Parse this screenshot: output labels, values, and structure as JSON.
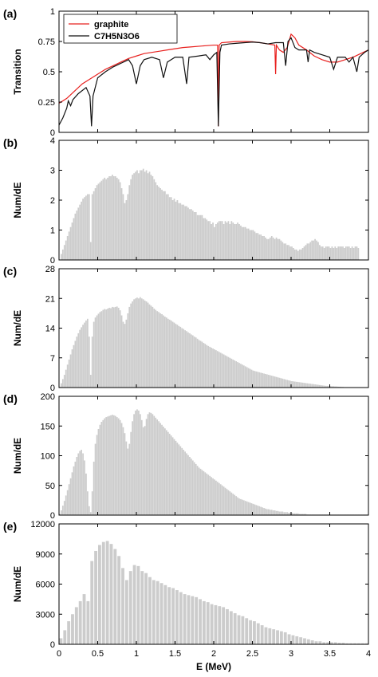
{
  "chart_data": [
    {
      "panel": "(a)",
      "type": "line",
      "ylabel": "Transition",
      "xlim": [
        0,
        4
      ],
      "ylim": [
        0,
        1
      ],
      "yticks": [
        "0",
        "0.25",
        "0.5",
        "0.75",
        "1"
      ],
      "legend_position": "top-left",
      "series": [
        {
          "name": "graphite",
          "color": "#e8201e",
          "points": [
            [
              0,
              0.24
            ],
            [
              0.1,
              0.28
            ],
            [
              0.2,
              0.34
            ],
            [
              0.3,
              0.4
            ],
            [
              0.4,
              0.44
            ],
            [
              0.5,
              0.48
            ],
            [
              0.6,
              0.52
            ],
            [
              0.7,
              0.55
            ],
            [
              0.8,
              0.58
            ],
            [
              0.9,
              0.61
            ],
            [
              1.0,
              0.63
            ],
            [
              1.1,
              0.65
            ],
            [
              1.2,
              0.66
            ],
            [
              1.3,
              0.67
            ],
            [
              1.4,
              0.68
            ],
            [
              1.5,
              0.69
            ],
            [
              1.6,
              0.7
            ],
            [
              1.7,
              0.705
            ],
            [
              1.8,
              0.71
            ],
            [
              1.9,
              0.715
            ],
            [
              2.0,
              0.72
            ],
            [
              2.05,
              0.72
            ],
            [
              2.06,
              0.05
            ],
            [
              2.07,
              0.72
            ],
            [
              2.1,
              0.74
            ],
            [
              2.2,
              0.745
            ],
            [
              2.3,
              0.75
            ],
            [
              2.4,
              0.75
            ],
            [
              2.5,
              0.748
            ],
            [
              2.6,
              0.74
            ],
            [
              2.7,
              0.73
            ],
            [
              2.79,
              0.72
            ],
            [
              2.8,
              0.48
            ],
            [
              2.81,
              0.72
            ],
            [
              2.85,
              0.68
            ],
            [
              2.9,
              0.66
            ],
            [
              2.95,
              0.7
            ],
            [
              3.0,
              0.81
            ],
            [
              3.05,
              0.78
            ],
            [
              3.1,
              0.72
            ],
            [
              3.2,
              0.68
            ],
            [
              3.3,
              0.63
            ],
            [
              3.4,
              0.6
            ],
            [
              3.5,
              0.58
            ],
            [
              3.6,
              0.58
            ],
            [
              3.7,
              0.6
            ],
            [
              3.8,
              0.62
            ],
            [
              3.9,
              0.65
            ],
            [
              4.0,
              0.68
            ]
          ]
        },
        {
          "name": "C7H5N3O6",
          "color": "#111111",
          "points": [
            [
              0,
              0.06
            ],
            [
              0.05,
              0.12
            ],
            [
              0.1,
              0.2
            ],
            [
              0.12,
              0.26
            ],
            [
              0.15,
              0.22
            ],
            [
              0.18,
              0.27
            ],
            [
              0.25,
              0.32
            ],
            [
              0.35,
              0.37
            ],
            [
              0.4,
              0.3
            ],
            [
              0.42,
              0.05
            ],
            [
              0.44,
              0.3
            ],
            [
              0.5,
              0.45
            ],
            [
              0.6,
              0.5
            ],
            [
              0.7,
              0.54
            ],
            [
              0.8,
              0.57
            ],
            [
              0.9,
              0.6
            ],
            [
              0.95,
              0.55
            ],
            [
              1.0,
              0.4
            ],
            [
              1.05,
              0.55
            ],
            [
              1.1,
              0.6
            ],
            [
              1.2,
              0.62
            ],
            [
              1.3,
              0.6
            ],
            [
              1.35,
              0.45
            ],
            [
              1.4,
              0.58
            ],
            [
              1.5,
              0.62
            ],
            [
              1.6,
              0.62
            ],
            [
              1.65,
              0.4
            ],
            [
              1.68,
              0.62
            ],
            [
              1.8,
              0.63
            ],
            [
              1.9,
              0.64
            ],
            [
              1.95,
              0.6
            ],
            [
              2.0,
              0.64
            ],
            [
              2.04,
              0.66
            ],
            [
              2.06,
              0.05
            ],
            [
              2.08,
              0.66
            ],
            [
              2.1,
              0.72
            ],
            [
              2.2,
              0.73
            ],
            [
              2.3,
              0.735
            ],
            [
              2.4,
              0.74
            ],
            [
              2.5,
              0.745
            ],
            [
              2.6,
              0.74
            ],
            [
              2.7,
              0.73
            ],
            [
              2.8,
              0.74
            ],
            [
              2.9,
              0.74
            ],
            [
              2.93,
              0.55
            ],
            [
              2.96,
              0.75
            ],
            [
              3.0,
              0.78
            ],
            [
              3.05,
              0.7
            ],
            [
              3.1,
              0.68
            ],
            [
              3.2,
              0.68
            ],
            [
              3.22,
              0.58
            ],
            [
              3.24,
              0.68
            ],
            [
              3.3,
              0.66
            ],
            [
              3.4,
              0.64
            ],
            [
              3.5,
              0.62
            ],
            [
              3.55,
              0.52
            ],
            [
              3.6,
              0.62
            ],
            [
              3.7,
              0.62
            ],
            [
              3.75,
              0.58
            ],
            [
              3.8,
              0.62
            ],
            [
              3.85,
              0.5
            ],
            [
              3.88,
              0.62
            ],
            [
              3.95,
              0.66
            ],
            [
              4.0,
              0.68
            ]
          ]
        }
      ]
    },
    {
      "panel": "(b)",
      "type": "bar",
      "ylabel": "Num/dE",
      "xlim": [
        0,
        4
      ],
      "ylim": [
        0,
        4
      ],
      "yticks": [
        "0",
        "1",
        "2",
        "3",
        "4"
      ],
      "bar_color": "#cccccc",
      "binwidth": 0.02,
      "values": [
        0.0,
        0.2,
        0.35,
        0.5,
        0.65,
        0.8,
        0.95,
        1.1,
        1.25,
        1.4,
        1.55,
        1.65,
        1.75,
        1.85,
        1.95,
        2.05,
        2.1,
        2.15,
        2.2,
        2.2,
        0.6,
        2.2,
        2.3,
        2.4,
        2.5,
        2.55,
        2.6,
        2.65,
        2.7,
        2.75,
        2.7,
        2.75,
        2.8,
        2.8,
        2.85,
        2.8,
        2.8,
        2.75,
        2.7,
        2.6,
        2.4,
        2.2,
        1.9,
        2.0,
        2.2,
        2.5,
        2.7,
        2.85,
        2.9,
        2.95,
        3.0,
        2.9,
        3.0,
        3.0,
        3.05,
        2.95,
        3.0,
        2.9,
        2.95,
        2.85,
        2.8,
        2.7,
        2.6,
        2.5,
        2.45,
        2.4,
        2.35,
        2.3,
        2.3,
        2.2,
        2.2,
        2.1,
        2.1,
        2.0,
        2.05,
        1.95,
        2.0,
        1.9,
        1.9,
        1.85,
        1.85,
        1.8,
        1.8,
        1.75,
        1.7,
        1.7,
        1.65,
        1.6,
        1.6,
        1.5,
        1.5,
        1.5,
        1.5,
        1.4,
        1.4,
        1.35,
        1.3,
        1.3,
        1.2,
        1.25,
        1.1,
        1.2,
        1.25,
        1.3,
        1.3,
        1.3,
        1.2,
        1.3,
        1.25,
        1.3,
        1.2,
        1.3,
        1.25,
        1.2,
        1.2,
        1.25,
        1.2,
        1.15,
        1.1,
        1.1,
        1.1,
        1.05,
        1.05,
        1.0,
        1.0,
        1.0,
        0.95,
        0.9,
        0.9,
        0.85,
        0.85,
        0.8,
        0.8,
        0.75,
        0.7,
        0.7,
        0.75,
        0.8,
        0.75,
        0.7,
        0.75,
        0.7,
        0.7,
        0.65,
        0.6,
        0.55,
        0.55,
        0.5,
        0.5,
        0.45,
        0.45,
        0.4,
        0.35,
        0.35,
        0.3,
        0.35,
        0.35,
        0.4,
        0.45,
        0.5,
        0.55,
        0.55,
        0.6,
        0.65,
        0.65,
        0.7,
        0.65,
        0.6,
        0.5,
        0.45,
        0.45,
        0.4,
        0.45,
        0.45,
        0.45,
        0.4,
        0.45,
        0.4,
        0.45,
        0.4,
        0.45,
        0.45,
        0.45,
        0.45,
        0.4,
        0.45,
        0.45,
        0.45,
        0.4,
        0.45,
        0.4,
        0.45,
        0.45,
        0.4
      ]
    },
    {
      "panel": "(c)",
      "type": "bar",
      "ylabel": "Num/dE",
      "xlim": [
        0,
        4
      ],
      "ylim": [
        0,
        28
      ],
      "yticks": [
        "0",
        "7",
        "14",
        "21",
        "28"
      ],
      "bar_color": "#cccccc",
      "binwidth": 0.02,
      "values": [
        0.2,
        1.0,
        2.0,
        3.0,
        4.2,
        5.4,
        6.6,
        7.8,
        9.0,
        10.0,
        11.0,
        12.0,
        12.8,
        13.6,
        14.2,
        14.8,
        15.3,
        15.8,
        16.2,
        12.0,
        3.0,
        12.0,
        15.5,
        16.5,
        17.0,
        17.4,
        17.8,
        18.0,
        18.3,
        18.5,
        18.4,
        18.6,
        18.8,
        18.7,
        19.0,
        18.9,
        19.0,
        19.1,
        18.8,
        18.2,
        17.0,
        15.5,
        15.0,
        16.0,
        17.5,
        19.0,
        19.8,
        20.3,
        20.8,
        21.0,
        21.2,
        21.0,
        21.3,
        21.0,
        20.8,
        20.5,
        20.3,
        20.0,
        19.6,
        19.3,
        19.0,
        18.6,
        18.3,
        18.0,
        17.8,
        17.5,
        17.3,
        17.0,
        16.7,
        16.5,
        16.2,
        16.0,
        15.8,
        15.5,
        15.3,
        15.0,
        14.8,
        14.5,
        14.3,
        14.0,
        13.8,
        13.5,
        13.3,
        13.0,
        12.8,
        12.5,
        12.3,
        12.0,
        11.8,
        11.5,
        11.2,
        11.0,
        10.8,
        10.5,
        10.3,
        10.0,
        9.8,
        9.6,
        9.4,
        9.2,
        9.0,
        8.8,
        8.6,
        8.4,
        8.2,
        8.0,
        7.8,
        7.6,
        7.4,
        7.2,
        7.0,
        6.8,
        6.6,
        6.4,
        6.2,
        6.0,
        5.8,
        5.6,
        5.4,
        5.2,
        5.0,
        4.8,
        4.6,
        4.4,
        4.2,
        4.0,
        3.9,
        3.8,
        3.7,
        3.6,
        3.5,
        3.4,
        3.3,
        3.2,
        3.1,
        3.0,
        2.9,
        2.8,
        2.7,
        2.6,
        2.5,
        2.4,
        2.3,
        2.2,
        2.1,
        2.0,
        1.9,
        1.8,
        1.7,
        1.6,
        1.5,
        1.45,
        1.4,
        1.35,
        1.3,
        1.25,
        1.2,
        1.15,
        1.1,
        1.05,
        1.0,
        0.95,
        0.9,
        0.85,
        0.8,
        0.75,
        0.7,
        0.65,
        0.6,
        0.55,
        0.5,
        0.45,
        0.4,
        0.4,
        0.35,
        0.35,
        0.3,
        0.3,
        0.25,
        0.25,
        0.2,
        0.2,
        0.15,
        0.15,
        0.1,
        0.1,
        0.1,
        0.1,
        0.05,
        0.05,
        0.05,
        0.05
      ]
    },
    {
      "panel": "(d)",
      "type": "bar",
      "ylabel": "Num/dE",
      "xlim": [
        0,
        4
      ],
      "ylim": [
        0,
        200
      ],
      "yticks": [
        "0",
        "50",
        "100",
        "150",
        "200"
      ],
      "bar_color": "#cccccc",
      "binwidth": 0.02,
      "values": [
        2,
        8,
        16,
        24,
        33,
        42,
        52,
        62,
        72,
        82,
        90,
        98,
        104,
        108,
        110,
        104,
        92,
        70,
        40,
        15,
        5,
        40,
        90,
        120,
        135,
        145,
        152,
        157,
        160,
        163,
        165,
        166,
        167,
        168,
        169,
        168,
        167,
        165,
        163,
        160,
        155,
        148,
        138,
        124,
        112,
        120,
        140,
        158,
        170,
        176,
        178,
        176,
        170,
        160,
        148,
        150,
        162,
        170,
        173,
        172,
        170,
        167,
        164,
        161,
        158,
        155,
        152,
        149,
        146,
        143,
        140,
        137,
        134,
        131,
        128,
        125,
        122,
        119,
        116,
        113,
        110,
        107,
        104,
        101,
        98,
        95,
        92,
        89,
        86,
        83,
        80,
        78,
        76,
        74,
        72,
        70,
        68,
        66,
        64,
        62,
        60,
        58,
        56,
        54,
        52,
        50,
        48,
        46,
        44,
        42,
        40,
        38,
        36,
        34,
        32,
        30,
        28,
        27,
        26,
        25,
        24,
        23,
        22,
        21,
        20,
        19,
        18,
        17,
        16,
        15,
        14,
        13,
        12,
        11,
        10,
        10,
        9,
        9,
        8,
        8,
        7,
        7,
        6,
        6,
        6,
        5,
        5,
        5,
        4,
        4,
        4,
        3,
        3,
        3,
        3,
        2,
        2,
        2,
        2,
        2,
        1,
        1,
        1,
        1,
        1,
        1,
        1,
        1,
        1,
        1,
        1,
        1,
        1,
        1,
        1,
        1,
        1,
        1,
        1,
        1,
        1,
        1,
        1,
        1,
        1,
        1,
        1,
        1,
        1,
        1,
        1,
        1,
        1,
        1,
        1,
        1,
        1,
        1,
        1,
        1
      ]
    },
    {
      "panel": "(e)",
      "type": "bar",
      "xlabel": "E (MeV)",
      "ylabel": "Num/dE",
      "xlim": [
        0,
        4
      ],
      "ylim": [
        0,
        12000
      ],
      "xticks": [
        "0",
        "0.5",
        "1",
        "1.5",
        "2",
        "2.5",
        "3",
        "3.5",
        "4"
      ],
      "yticks": [
        "0",
        "3000",
        "6000",
        "9000",
        "12000"
      ],
      "bar_color": "#cccccc",
      "binwidth": 0.05,
      "values": [
        600,
        1400,
        2300,
        3000,
        3700,
        4300,
        5000,
        4300,
        8300,
        9300,
        9900,
        10200,
        10300,
        10000,
        9500,
        8800,
        7600,
        6400,
        7300,
        7900,
        7800,
        7300,
        7100,
        6700,
        6400,
        6300,
        6100,
        5900,
        5700,
        5600,
        5400,
        5200,
        5000,
        4900,
        4800,
        4700,
        4500,
        4300,
        4200,
        4000,
        3900,
        3800,
        3700,
        3500,
        3300,
        3100,
        2900,
        2800,
        2600,
        2400,
        2300,
        2100,
        1900,
        1700,
        1600,
        1500,
        1400,
        1300,
        1200,
        1000,
        900,
        800,
        700,
        600,
        500,
        400,
        300,
        300,
        200,
        200,
        200,
        200,
        150,
        150,
        100,
        100,
        100,
        100,
        100,
        100
      ]
    }
  ]
}
